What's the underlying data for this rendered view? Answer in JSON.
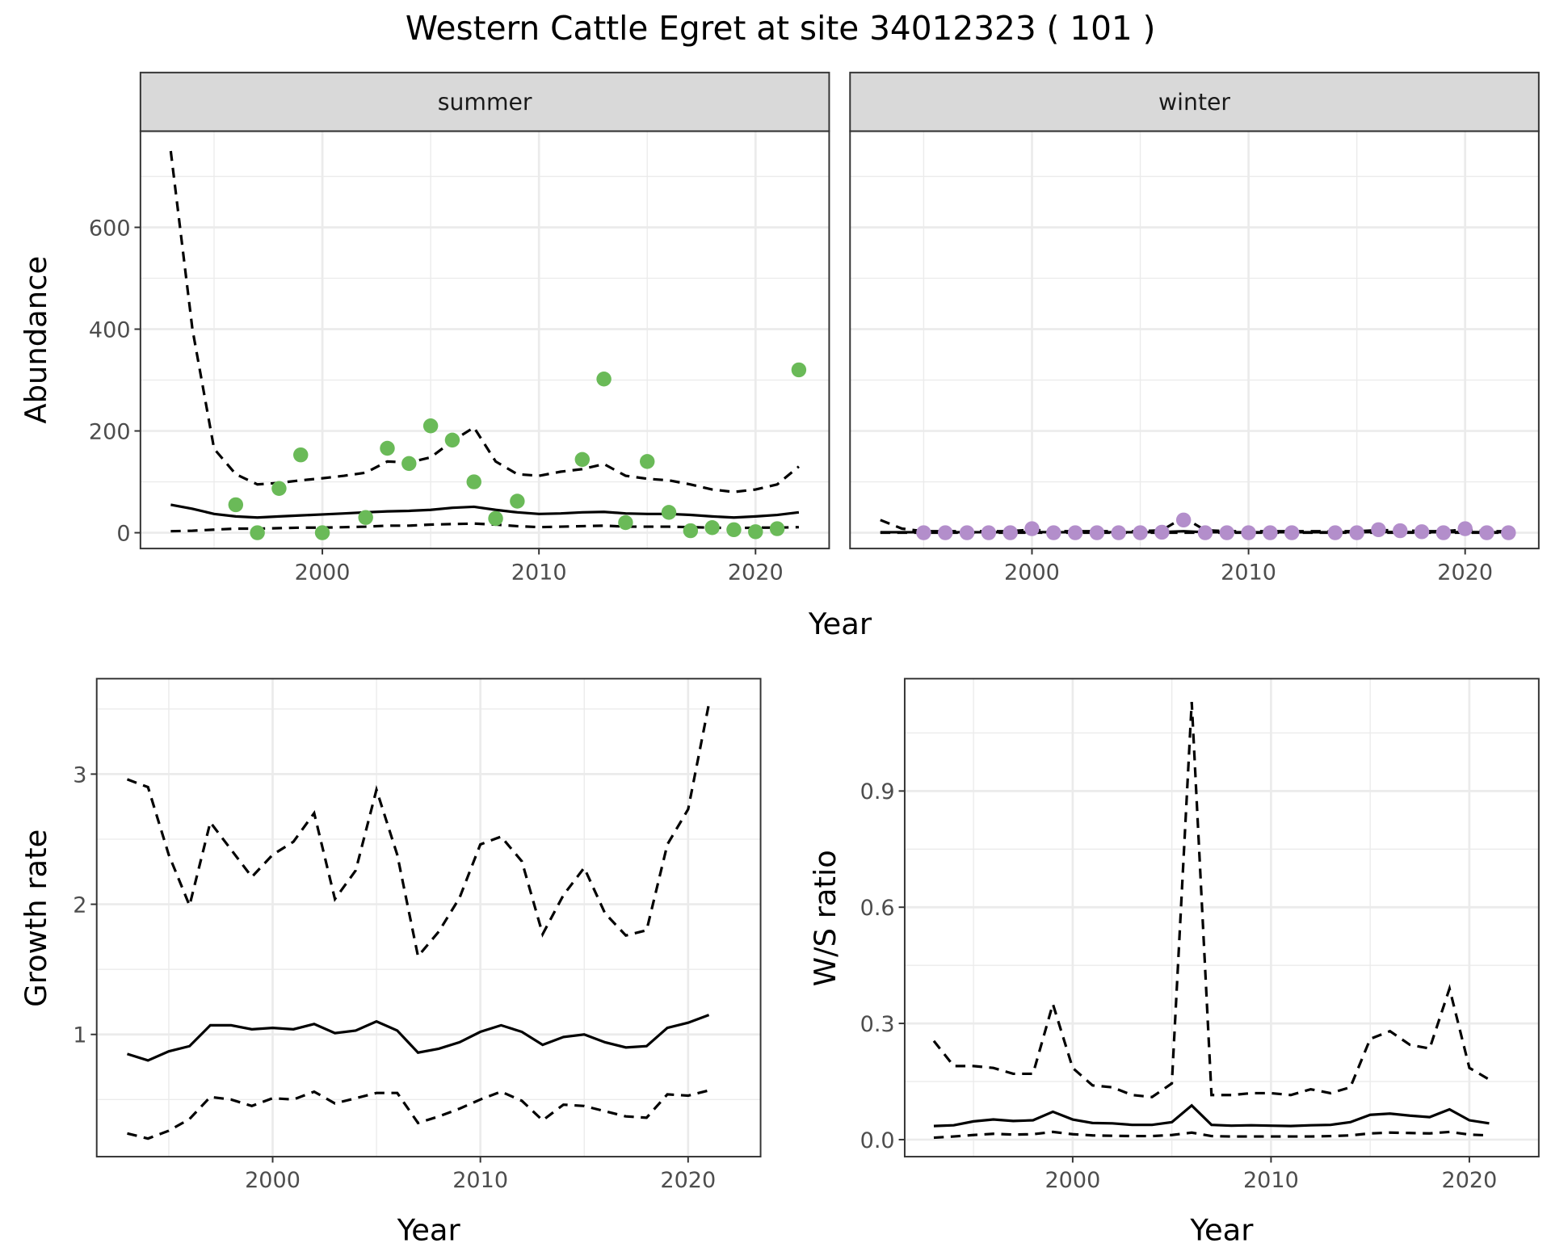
{
  "title": "Western Cattle Egret at site 34012323 ( 101 )",
  "colors": {
    "summer": "#6aba58",
    "winter": "#b38ecb",
    "grid": "#ebebeb",
    "strip": "#d9d9d9"
  },
  "chart_data": [
    {
      "type": "line",
      "panel": "summer",
      "strip_label": "summer",
      "xlabel": "Year",
      "ylabel": "Abundance",
      "xlim": [
        1991.6,
        2023.4
      ],
      "ylim": [
        -31,
        789
      ],
      "xticks": [
        2000,
        2010,
        2020
      ],
      "yticks": [
        0,
        200,
        400,
        600
      ],
      "grid": true,
      "points": {
        "x": [
          1996,
          1997,
          1998,
          1999,
          2000,
          2002,
          2003,
          2004,
          2005,
          2006,
          2007,
          2008,
          2009,
          2012,
          2013,
          2014,
          2015,
          2016,
          2017,
          2018,
          2019,
          2020,
          2021,
          2022
        ],
        "y": [
          55,
          0,
          87,
          153,
          0,
          30,
          166,
          136,
          210,
          182,
          100,
          28,
          62,
          144,
          302,
          20,
          140,
          40,
          4,
          10,
          6,
          2,
          8,
          320
        ]
      },
      "x": [
        1993,
        1994,
        1995,
        1996,
        1997,
        1998,
        1999,
        2000,
        2001,
        2002,
        2003,
        2004,
        2005,
        2006,
        2007,
        2008,
        2009,
        2010,
        2011,
        2012,
        2013,
        2014,
        2015,
        2016,
        2017,
        2018,
        2019,
        2020,
        2021,
        2022
      ],
      "series": [
        {
          "name": "estimate",
          "style": "solid",
          "values": [
            55,
            47,
            37,
            32,
            30,
            32,
            34,
            36,
            38,
            40,
            42,
            43,
            45,
            49,
            51,
            45,
            40,
            37,
            38,
            40,
            41,
            38,
            37,
            37,
            35,
            32,
            30,
            32,
            35,
            40
          ]
        },
        {
          "name": "upper",
          "style": "dashed",
          "values": [
            750,
            400,
            165,
            115,
            95,
            98,
            103,
            107,
            112,
            118,
            140,
            138,
            148,
            180,
            207,
            140,
            115,
            112,
            120,
            125,
            135,
            112,
            106,
            103,
            95,
            85,
            80,
            85,
            95,
            130
          ]
        },
        {
          "name": "lower",
          "style": "dashed",
          "values": [
            3,
            4,
            6,
            8,
            8,
            9,
            10,
            10,
            11,
            12,
            14,
            14,
            16,
            17,
            18,
            16,
            13,
            11,
            12,
            13,
            14,
            12,
            12,
            12,
            11,
            10,
            9,
            10,
            10,
            11
          ]
        }
      ]
    },
    {
      "type": "line",
      "panel": "winter",
      "strip_label": "winter",
      "xlabel": "Year",
      "ylabel": "",
      "xlim": [
        1991.6,
        2023.4
      ],
      "ylim": [
        -31,
        789
      ],
      "xticks": [
        2000,
        2010,
        2020
      ],
      "yticks": [
        0,
        200,
        400,
        600
      ],
      "grid": true,
      "points": {
        "x": [
          1995,
          1996,
          1997,
          1998,
          1999,
          2000,
          2001,
          2002,
          2003,
          2004,
          2005,
          2006,
          2007,
          2008,
          2009,
          2010,
          2011,
          2012,
          2014,
          2015,
          2016,
          2017,
          2018,
          2019,
          2020,
          2021,
          2022
        ],
        "y": [
          0,
          0,
          0,
          0,
          0,
          8,
          0,
          0,
          0,
          0,
          0,
          1,
          25,
          0,
          0,
          0,
          0,
          0,
          0,
          0,
          6,
          4,
          2,
          0,
          8,
          0,
          0
        ]
      },
      "x": [
        1993,
        1994,
        1995,
        1996,
        1997,
        1998,
        1999,
        2000,
        2001,
        2002,
        2003,
        2004,
        2005,
        2006,
        2007,
        2008,
        2009,
        2010,
        2011,
        2012,
        2013,
        2014,
        2015,
        2016,
        2017,
        2018,
        2019,
        2020,
        2021,
        2022
      ],
      "series": [
        {
          "name": "estimate",
          "style": "solid",
          "values": [
            1,
            1,
            1,
            1,
            1,
            1,
            1,
            1.5,
            1,
            1,
            1,
            1,
            1,
            1.5,
            3,
            1,
            1,
            1,
            1,
            1,
            1,
            1,
            1,
            1.5,
            1.5,
            1,
            1,
            1.5,
            1,
            1
          ]
        },
        {
          "name": "upper",
          "style": "dashed",
          "values": [
            25,
            8,
            3,
            3,
            3,
            3,
            3,
            6,
            3,
            3,
            3,
            3,
            3,
            5,
            30,
            5,
            3,
            3,
            3,
            3,
            3,
            3,
            3,
            5,
            5,
            3,
            3,
            6,
            3,
            3
          ]
        },
        {
          "name": "lower",
          "style": "dashed",
          "values": [
            0,
            0,
            0,
            0,
            0,
            0,
            0,
            0,
            0,
            0,
            0,
            0,
            0,
            0,
            0,
            0,
            0,
            0,
            0,
            0,
            0,
            0,
            0,
            0,
            0,
            0,
            0,
            0,
            0,
            0
          ]
        }
      ]
    },
    {
      "type": "line",
      "panel": "growth",
      "xlabel": "Year",
      "ylabel": "Growth rate",
      "xlim": [
        1991.53,
        2023.49
      ],
      "ylim": [
        0.061,
        3.733
      ],
      "xticks": [
        2000,
        2010,
        2020
      ],
      "yticks": [
        1,
        2,
        3
      ],
      "grid": true,
      "x": [
        1993,
        1994,
        1995,
        1996,
        1997,
        1998,
        1999,
        2000,
        2001,
        2002,
        2003,
        2004,
        2005,
        2006,
        2007,
        2008,
        2009,
        2010,
        2011,
        2012,
        2013,
        2014,
        2015,
        2016,
        2017,
        2018,
        2019,
        2020,
        2021
      ],
      "series": [
        {
          "name": "estimate",
          "style": "solid",
          "values": [
            0.85,
            0.8,
            0.87,
            0.91,
            1.07,
            1.07,
            1.04,
            1.05,
            1.04,
            1.08,
            1.01,
            1.03,
            1.1,
            1.03,
            0.86,
            0.89,
            0.94,
            1.02,
            1.07,
            1.02,
            0.92,
            0.98,
            1.0,
            0.94,
            0.9,
            0.91,
            1.05,
            1.09,
            1.15
          ]
        },
        {
          "name": "upper",
          "style": "dashed",
          "values": [
            2.96,
            2.9,
            2.38,
            1.99,
            2.63,
            2.42,
            2.21,
            2.38,
            2.48,
            2.7,
            2.04,
            2.26,
            2.88,
            2.38,
            1.6,
            1.79,
            2.05,
            2.46,
            2.52,
            2.33,
            1.77,
            2.07,
            2.28,
            1.93,
            1.76,
            1.8,
            2.46,
            2.73,
            3.54
          ]
        },
        {
          "name": "lower",
          "style": "dashed",
          "values": [
            0.24,
            0.2,
            0.26,
            0.35,
            0.52,
            0.5,
            0.45,
            0.51,
            0.5,
            0.56,
            0.47,
            0.51,
            0.55,
            0.55,
            0.32,
            0.37,
            0.43,
            0.5,
            0.56,
            0.49,
            0.34,
            0.46,
            0.45,
            0.41,
            0.37,
            0.36,
            0.54,
            0.53,
            0.57
          ]
        }
      ]
    },
    {
      "type": "line",
      "panel": "ratio",
      "xlabel": "Year",
      "ylabel": "W/S ratio",
      "xlim": [
        1991.53,
        2023.5
      ],
      "ylim": [
        -0.044,
        1.19
      ],
      "xticks": [
        2000,
        2010,
        2020
      ],
      "yticks": [
        0.0,
        0.3,
        0.6,
        0.9
      ],
      "ytick_labels": [
        "0.0",
        "0.3",
        "0.6",
        "0.9"
      ],
      "grid": true,
      "x": [
        1993,
        1994,
        1995,
        1996,
        1997,
        1998,
        1999,
        2000,
        2001,
        2002,
        2003,
        2004,
        2005,
        2006,
        2007,
        2008,
        2009,
        2010,
        2011,
        2012,
        2013,
        2014,
        2015,
        2016,
        2017,
        2018,
        2019,
        2020,
        2021
      ],
      "series": [
        {
          "name": "estimate",
          "style": "solid",
          "values": [
            0.035,
            0.037,
            0.047,
            0.052,
            0.048,
            0.05,
            0.072,
            0.052,
            0.043,
            0.042,
            0.038,
            0.038,
            0.045,
            0.088,
            0.038,
            0.036,
            0.037,
            0.036,
            0.035,
            0.037,
            0.038,
            0.045,
            0.064,
            0.067,
            0.062,
            0.058,
            0.078,
            0.05,
            0.042
          ]
        },
        {
          "name": "upper",
          "style": "dashed",
          "values": [
            0.255,
            0.19,
            0.19,
            0.185,
            0.17,
            0.17,
            0.35,
            0.185,
            0.14,
            0.135,
            0.115,
            0.11,
            0.145,
            1.13,
            0.115,
            0.115,
            0.12,
            0.12,
            0.115,
            0.13,
            0.12,
            0.135,
            0.26,
            0.28,
            0.245,
            0.235,
            0.39,
            0.185,
            0.155
          ]
        },
        {
          "name": "lower",
          "style": "dashed",
          "values": [
            0.005,
            0.008,
            0.012,
            0.015,
            0.013,
            0.014,
            0.02,
            0.014,
            0.011,
            0.01,
            0.009,
            0.009,
            0.012,
            0.018,
            0.009,
            0.008,
            0.008,
            0.008,
            0.008,
            0.008,
            0.009,
            0.011,
            0.016,
            0.018,
            0.017,
            0.016,
            0.02,
            0.013,
            0.011
          ]
        }
      ]
    }
  ]
}
